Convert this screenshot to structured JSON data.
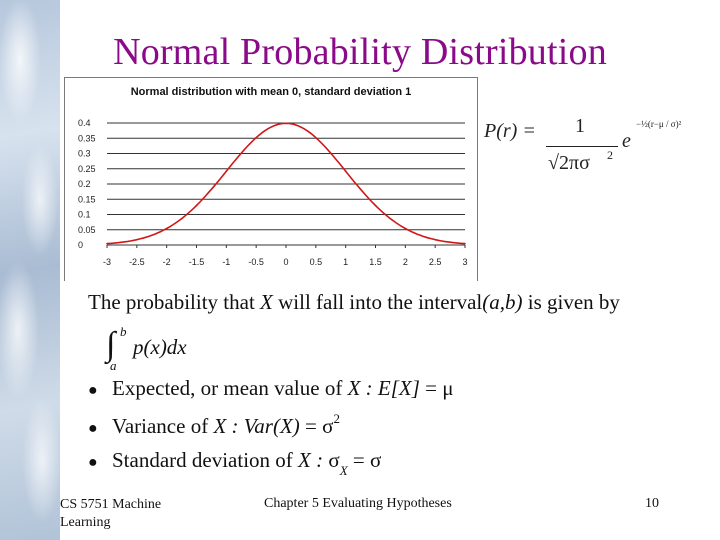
{
  "slide": {
    "title": "Normal Probability Distribution",
    "interval_sentence": {
      "part1": "The probability that",
      "var": "X",
      "part2": "will fall into the interval",
      "interval": "(a,b)",
      "part3": "is given by"
    },
    "integral": {
      "upper": "b",
      "lower": "a",
      "integrand": "p(x)dx"
    },
    "formula": {
      "lhs": "P(r) =",
      "numerator": "1",
      "denominator": "√2πσ",
      "denominator_exp": "2",
      "base": "e",
      "exponent": "−½(r−μ / σ)²"
    },
    "bullets": [
      {
        "text": "Expected, or mean value of",
        "var": "X :",
        "expr": "E[X]",
        "rhs": "= μ"
      },
      {
        "text": "Variance of",
        "var": "X :",
        "expr": "Var(X)",
        "rhs": "= σ",
        "sup": "2"
      },
      {
        "text": "Standard deviation of",
        "var": "X :",
        "expr": "σ",
        "sub": "X",
        "rhs": "= σ"
      }
    ],
    "footer": {
      "left_line1": "CS 5751 Machine",
      "left_line2": "Learning",
      "center": "Chapter 5  Evaluating Hypotheses",
      "page": "10"
    }
  },
  "chart_data": {
    "type": "line",
    "title": "Normal distribution with mean 0, standard deviation 1",
    "xlabel": "",
    "ylabel": "",
    "xlim": [
      -3,
      3
    ],
    "ylim": [
      0,
      0.4
    ],
    "x_ticks": [
      "-3",
      "-2.5",
      "-2",
      "-1.5",
      "-1",
      "-0.5",
      "0",
      "0.5",
      "1",
      "1.5",
      "2",
      "2.5",
      "3"
    ],
    "y_ticks": [
      "0",
      "0.05",
      "0.1",
      "0.15",
      "0.2",
      "0.25",
      "0.3",
      "0.35",
      "0.4"
    ],
    "grid": true,
    "legend": "none",
    "series": [
      {
        "color": "#d01818",
        "x": [
          -3,
          -2.5,
          -2,
          -1.5,
          -1,
          -0.5,
          0,
          0.5,
          1,
          1.5,
          2,
          2.5,
          3
        ],
        "y": [
          0.0044,
          0.0175,
          0.054,
          0.1295,
          0.242,
          0.352,
          0.399,
          0.352,
          0.242,
          0.1295,
          0.054,
          0.0175,
          0.0044
        ]
      }
    ]
  }
}
